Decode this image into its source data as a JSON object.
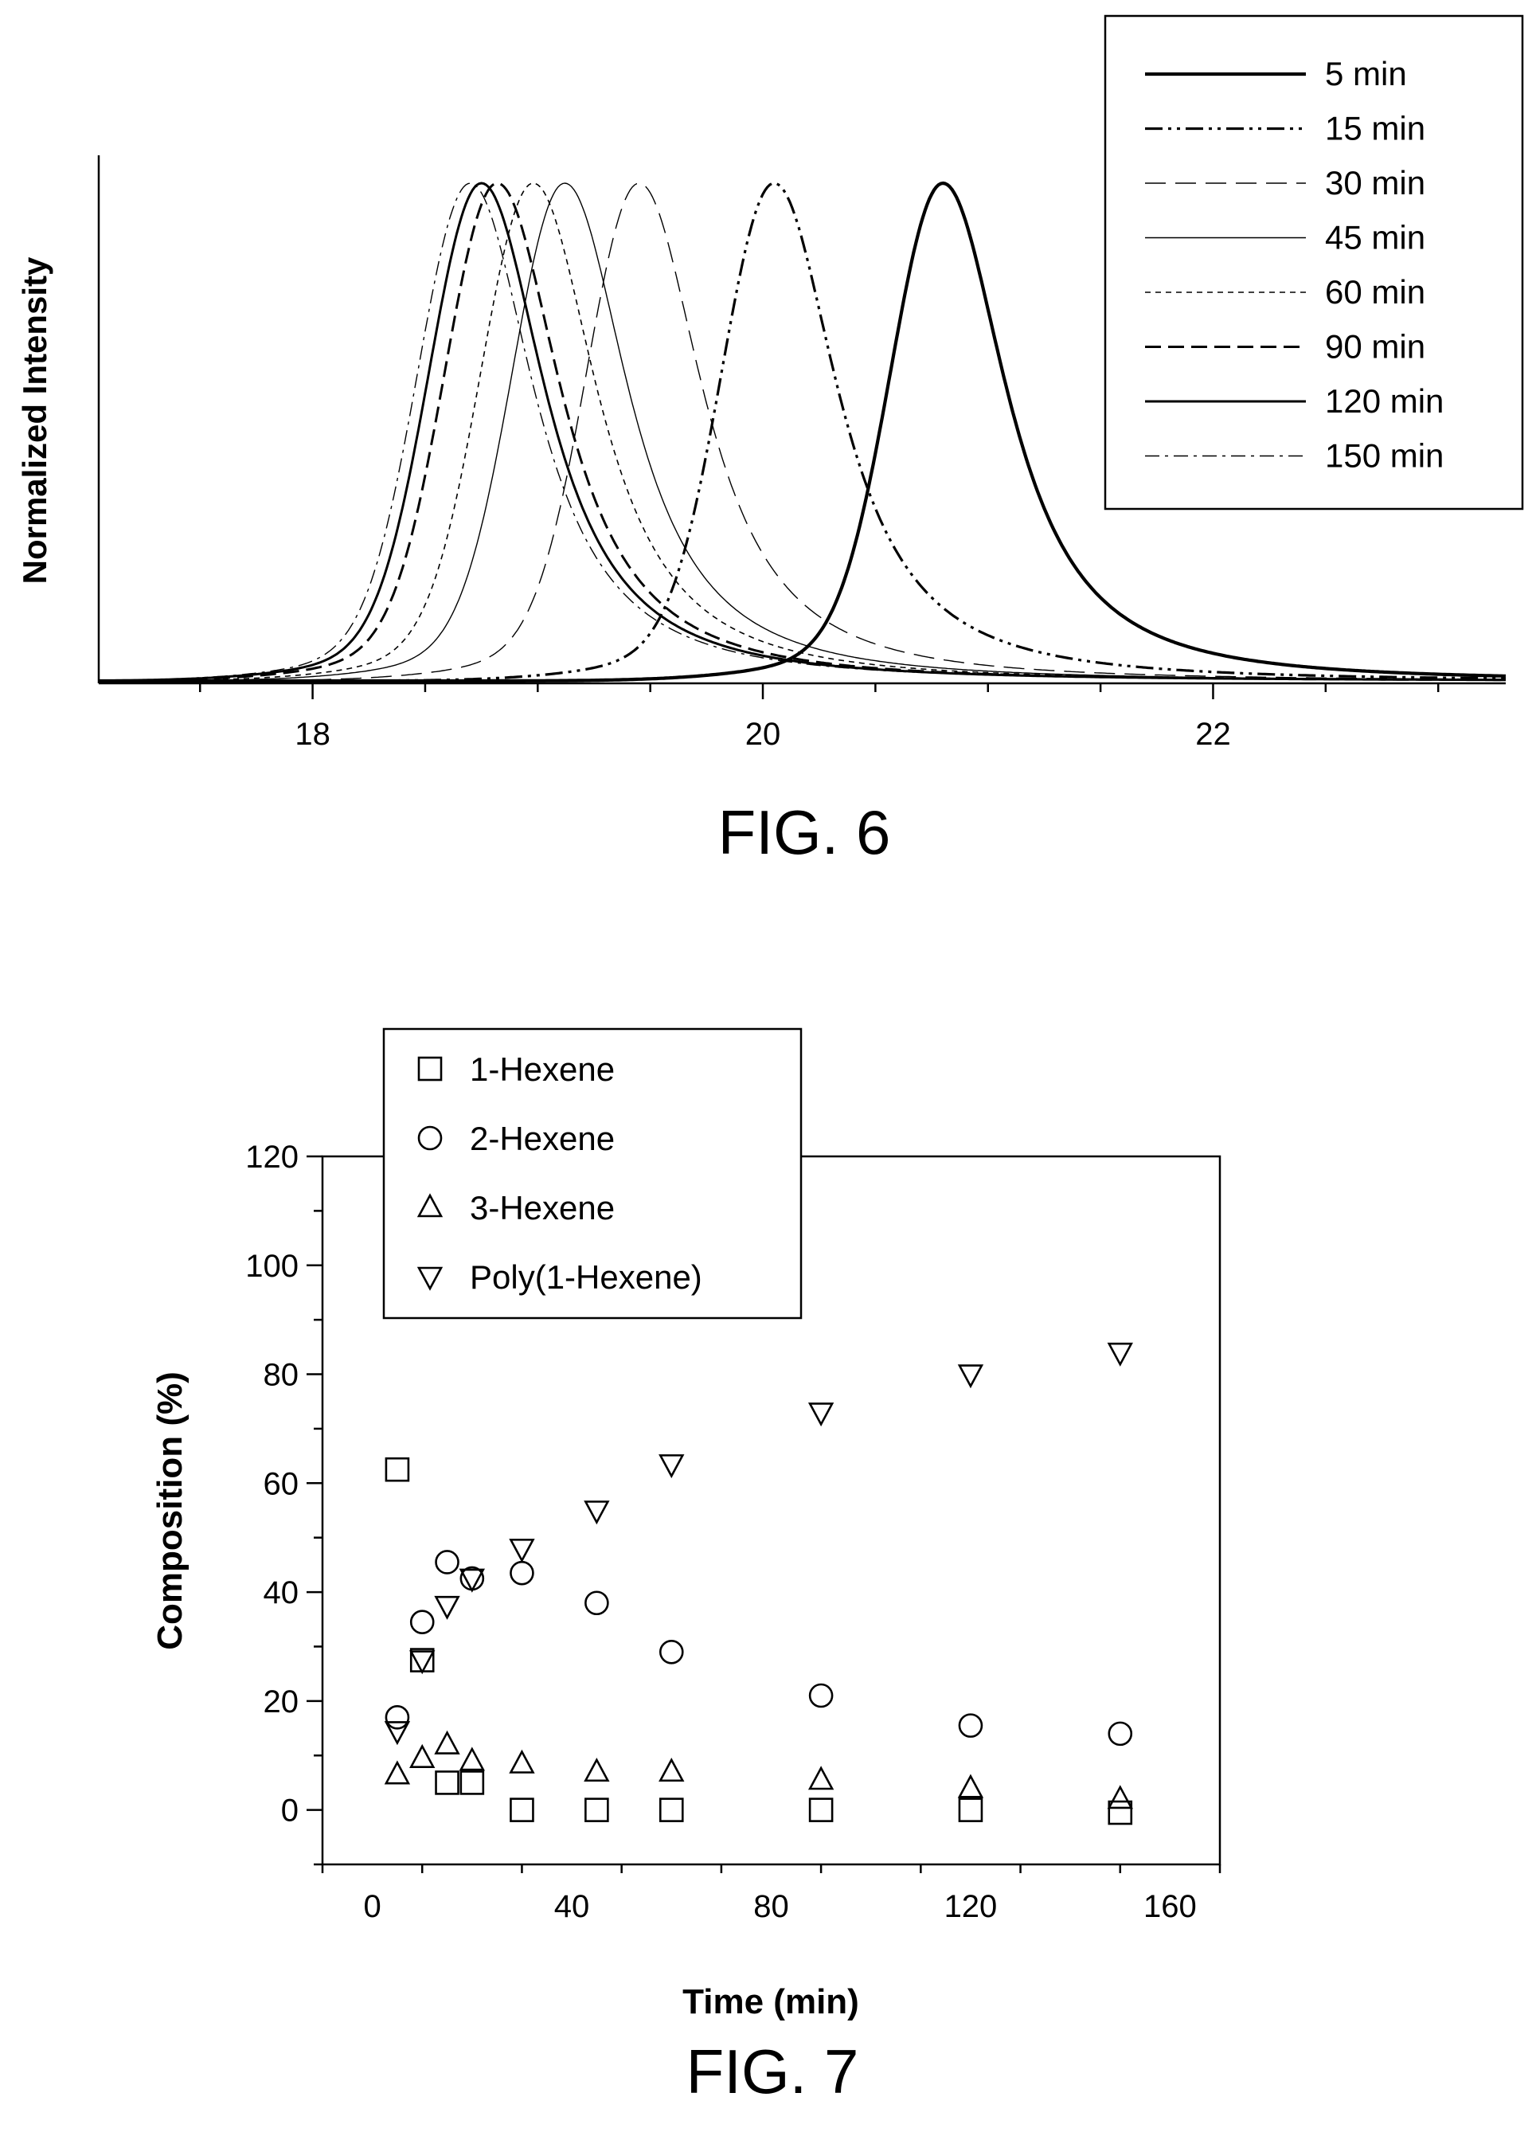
{
  "figures": {
    "fig6_caption": "FIG. 6",
    "fig7_caption": "FIG. 7"
  },
  "colors": {
    "ink": "#000000",
    "paper": "#ffffff"
  },
  "chart_data": [
    {
      "type": "line",
      "title": "",
      "xlabel": "",
      "ylabel": "Normalized Intensity",
      "xlim": [
        17.05,
        23.3
      ],
      "ylim": [
        0,
        1.05
      ],
      "x_ticks": [
        18,
        20,
        22
      ],
      "x_tick_labels": [
        "18",
        "20",
        "22"
      ],
      "y_ticks_shown": false,
      "grid": false,
      "legend_position": "top-right, outside plot frame",
      "series": [
        {
          "name": "5 min",
          "dash": "solid-thick",
          "peak_x": 20.8,
          "peak_y": 1.0
        },
        {
          "name": "15 min",
          "dash": "dash-dot-dot",
          "peak_x": 20.05,
          "peak_y": 1.0
        },
        {
          "name": "30 min",
          "dash": "long-dash-thin",
          "peak_x": 19.45,
          "peak_y": 1.0
        },
        {
          "name": "45 min",
          "dash": "solid-thin",
          "peak_x": 19.12,
          "peak_y": 1.0
        },
        {
          "name": "60 min",
          "dash": "short-dash",
          "peak_x": 18.98,
          "peak_y": 1.0
        },
        {
          "name": "90 min",
          "dash": "long-dash",
          "peak_x": 18.82,
          "peak_y": 1.0
        },
        {
          "name": "120 min",
          "dash": "solid",
          "peak_x": 18.75,
          "peak_y": 1.0
        },
        {
          "name": "150 min",
          "dash": "dash-dot",
          "peak_x": 18.7,
          "peak_y": 1.0
        }
      ]
    },
    {
      "type": "scatter",
      "title": "",
      "xlabel": "Time (min)",
      "ylabel": "Composition (%)",
      "xlim": [
        -10,
        170
      ],
      "ylim": [
        -10,
        120
      ],
      "x_ticks": [
        0,
        40,
        80,
        120,
        160
      ],
      "x_tick_labels": [
        "0",
        "40",
        "80",
        "120",
        "160"
      ],
      "y_ticks": [
        0,
        20,
        40,
        60,
        80,
        100,
        120
      ],
      "y_tick_labels": [
        "0",
        "20",
        "40",
        "60",
        "80",
        "100",
        "120"
      ],
      "grid": false,
      "legend_position": "top-left, overlapping top edge",
      "series": [
        {
          "name": "1-Hexene",
          "marker": "square",
          "points": [
            [
              5,
              62.5
            ],
            [
              10,
              27.5
            ],
            [
              15,
              5
            ],
            [
              20,
              5
            ],
            [
              30,
              0
            ],
            [
              45,
              0
            ],
            [
              60,
              0
            ],
            [
              90,
              0
            ],
            [
              120,
              0
            ],
            [
              150,
              -0.5
            ]
          ]
        },
        {
          "name": "2-Hexene",
          "marker": "circle",
          "points": [
            [
              5,
              17
            ],
            [
              10,
              34.5
            ],
            [
              15,
              45.5
            ],
            [
              20,
              42.5
            ],
            [
              30,
              43.5
            ],
            [
              45,
              38
            ],
            [
              60,
              29
            ],
            [
              90,
              21
            ],
            [
              120,
              15.5
            ],
            [
              150,
              14
            ]
          ]
        },
        {
          "name": "3-Hexene",
          "marker": "triangle-up",
          "points": [
            [
              5,
              6.5
            ],
            [
              10,
              9.5
            ],
            [
              15,
              12
            ],
            [
              20,
              9
            ],
            [
              30,
              8.5
            ],
            [
              45,
              7
            ],
            [
              60,
              7
            ],
            [
              90,
              5.5
            ],
            [
              120,
              4
            ],
            [
              150,
              2
            ]
          ]
        },
        {
          "name": "Poly(1-Hexene)",
          "marker": "triangle-down",
          "points": [
            [
              5,
              14.5
            ],
            [
              10,
              27.5
            ],
            [
              15,
              37.5
            ],
            [
              20,
              42.5
            ],
            [
              30,
              48
            ],
            [
              45,
              55
            ],
            [
              60,
              63.5
            ],
            [
              90,
              73
            ],
            [
              120,
              80
            ],
            [
              150,
              84
            ]
          ]
        }
      ]
    }
  ]
}
